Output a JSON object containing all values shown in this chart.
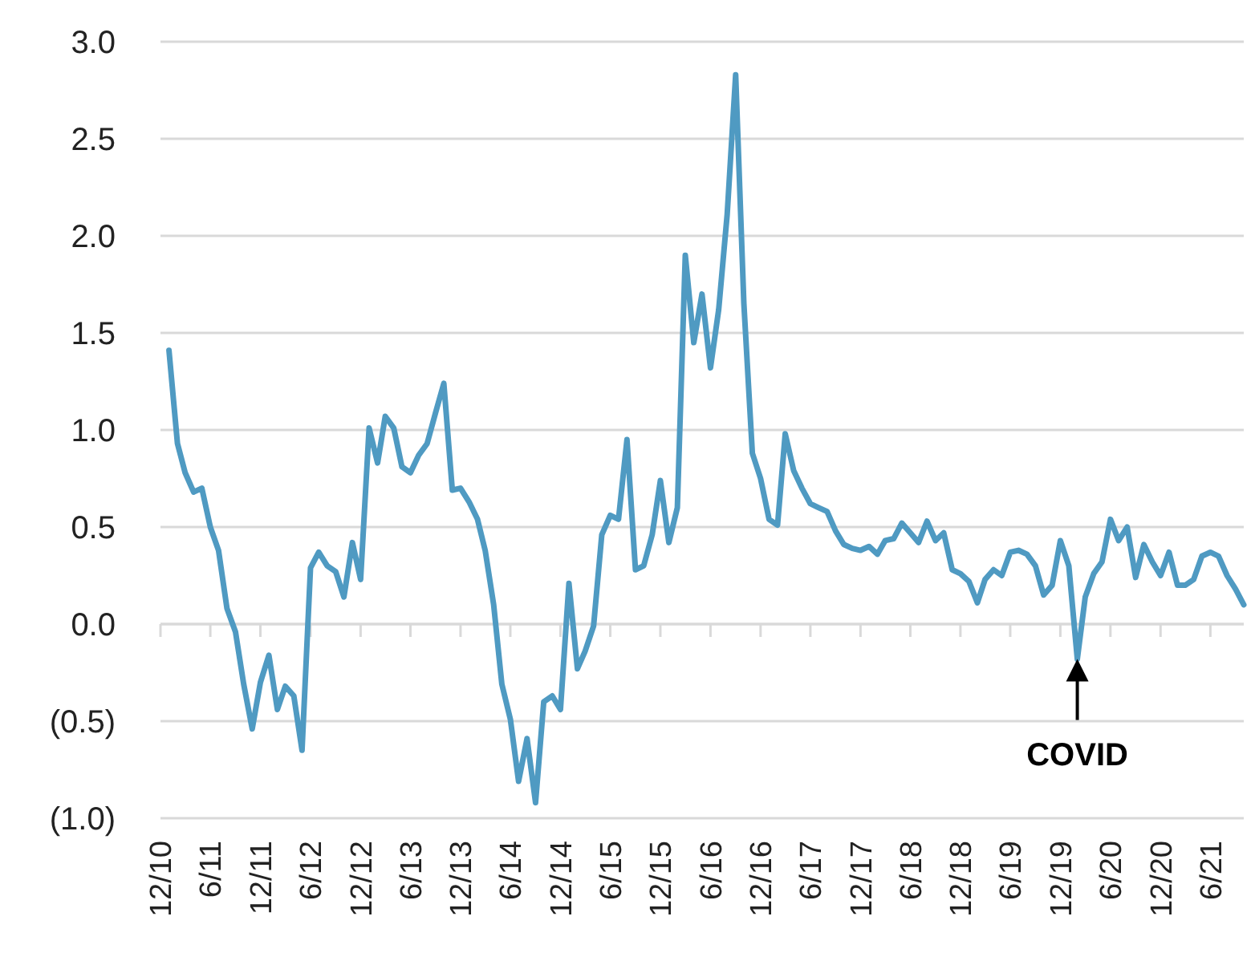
{
  "chart_data": {
    "type": "line",
    "xlim": [
      "2010-12",
      "2021-10"
    ],
    "ylim": [
      -1,
      3
    ],
    "xticks": [
      {
        "value": "2010-12",
        "label": "12/10"
      },
      {
        "value": "2011-06",
        "label": "6/11"
      },
      {
        "value": "2011-12",
        "label": "12/11"
      },
      {
        "value": "2012-06",
        "label": "6/12"
      },
      {
        "value": "2012-12",
        "label": "12/12"
      },
      {
        "value": "2013-06",
        "label": "6/13"
      },
      {
        "value": "2013-12",
        "label": "12/13"
      },
      {
        "value": "2014-06",
        "label": "6/14"
      },
      {
        "value": "2014-12",
        "label": "12/14"
      },
      {
        "value": "2015-06",
        "label": "6/15"
      },
      {
        "value": "2015-12",
        "label": "12/15"
      },
      {
        "value": "2016-06",
        "label": "6/16"
      },
      {
        "value": "2016-12",
        "label": "12/16"
      },
      {
        "value": "2017-06",
        "label": "6/17"
      },
      {
        "value": "2017-12",
        "label": "12/17"
      },
      {
        "value": "2018-06",
        "label": "6/18"
      },
      {
        "value": "2018-12",
        "label": "12/18"
      },
      {
        "value": "2019-06",
        "label": "6/19"
      },
      {
        "value": "2019-12",
        "label": "12/19"
      },
      {
        "value": "2020-06",
        "label": "6/20"
      },
      {
        "value": "2020-12",
        "label": "12/20"
      },
      {
        "value": "2021-06",
        "label": "6/21"
      }
    ],
    "yticks": [
      {
        "value": 3,
        "label": "3.0"
      },
      {
        "value": 2.5,
        "label": "2.5"
      },
      {
        "value": 2,
        "label": "2.0"
      },
      {
        "value": 1.5,
        "label": "1.5"
      },
      {
        "value": 1,
        "label": "1.0"
      },
      {
        "value": 0.5,
        "label": "0.5"
      },
      {
        "value": 0,
        "label": "0.0"
      },
      {
        "value": -0.5,
        "label": "(0.5)"
      },
      {
        "value": -1,
        "label": "(1.0)"
      }
    ],
    "grid": "y",
    "marker": "none",
    "line_style": "solid",
    "x": [
      "2011-01",
      "2011-02",
      "2011-03",
      "2011-04",
      "2011-05",
      "2011-06",
      "2011-07",
      "2011-08",
      "2011-09",
      "2011-10",
      "2011-11",
      "2011-12",
      "2012-01",
      "2012-02",
      "2012-03",
      "2012-04",
      "2012-05",
      "2012-06",
      "2012-07",
      "2012-08",
      "2012-09",
      "2012-10",
      "2012-11",
      "2012-12",
      "2013-01",
      "2013-02",
      "2013-03",
      "2013-04",
      "2013-05",
      "2013-06",
      "2013-07",
      "2013-08",
      "2013-09",
      "2013-10",
      "2013-11",
      "2013-12",
      "2014-01",
      "2014-02",
      "2014-03",
      "2014-04",
      "2014-05",
      "2014-06",
      "2014-07",
      "2014-08",
      "2014-09",
      "2014-10",
      "2014-11",
      "2014-12",
      "2015-01",
      "2015-02",
      "2015-03",
      "2015-04",
      "2015-05",
      "2015-06",
      "2015-07",
      "2015-08",
      "2015-09",
      "2015-10",
      "2015-11",
      "2015-12",
      "2016-01",
      "2016-02",
      "2016-03",
      "2016-04",
      "2016-05",
      "2016-06",
      "2016-07",
      "2016-08",
      "2016-09",
      "2016-10",
      "2016-11",
      "2016-12",
      "2017-01",
      "2017-02",
      "2017-03",
      "2017-04",
      "2017-05",
      "2017-06",
      "2017-07",
      "2017-08",
      "2017-09",
      "2017-10",
      "2017-11",
      "2017-12",
      "2018-01",
      "2018-02",
      "2018-03",
      "2018-04",
      "2018-05",
      "2018-06",
      "2018-07",
      "2018-08",
      "2018-09",
      "2018-10",
      "2018-11",
      "2018-12",
      "2019-01",
      "2019-02",
      "2019-03",
      "2019-04",
      "2019-05",
      "2019-06",
      "2019-07",
      "2019-08",
      "2019-09",
      "2019-10",
      "2019-11",
      "2019-12",
      "2020-01",
      "2020-02",
      "2020-03",
      "2020-04",
      "2020-05",
      "2020-06",
      "2020-07",
      "2020-08",
      "2020-09",
      "2020-10",
      "2020-11",
      "2020-12",
      "2021-01",
      "2021-02",
      "2021-03",
      "2021-04",
      "2021-05",
      "2021-06",
      "2021-07",
      "2021-08",
      "2021-09",
      "2021-10"
    ],
    "series": [
      {
        "color": "#4f9ac2",
        "values": [
          1.41,
          0.93,
          0.78,
          0.68,
          0.7,
          0.5,
          0.38,
          0.08,
          -0.04,
          -0.31,
          -0.54,
          -0.3,
          -0.16,
          -0.44,
          -0.32,
          -0.37,
          -0.65,
          0.29,
          0.37,
          0.3,
          0.27,
          0.14,
          0.42,
          0.23,
          1.01,
          0.83,
          1.07,
          1.01,
          0.81,
          0.78,
          0.87,
          0.93,
          1.09,
          1.24,
          0.69,
          0.7,
          0.63,
          0.54,
          0.38,
          0.1,
          -0.31,
          -0.49,
          -0.81,
          -0.59,
          -0.92,
          -0.4,
          -0.37,
          -0.44,
          0.21,
          -0.23,
          -0.14,
          -0.01,
          0.46,
          0.56,
          0.54,
          0.95,
          0.28,
          0.3,
          0.46,
          0.74,
          0.42,
          0.6,
          1.9,
          1.45,
          1.7,
          1.32,
          1.62,
          2.11,
          2.83,
          1.65,
          0.88,
          0.75,
          0.54,
          0.51,
          0.98,
          0.79,
          0.7,
          0.62,
          0.6,
          0.58,
          0.48,
          0.41,
          0.39,
          0.38,
          0.4,
          0.36,
          0.43,
          0.44,
          0.52,
          0.47,
          0.42,
          0.53,
          0.43,
          0.47,
          0.28,
          0.26,
          0.22,
          0.11,
          0.23,
          0.28,
          0.25,
          0.37,
          0.38,
          0.36,
          0.3,
          0.15,
          0.2,
          0.43,
          0.3,
          -0.18,
          0.14,
          0.26,
          0.32,
          0.54,
          0.43,
          0.5,
          0.24,
          0.41,
          0.32,
          0.25,
          0.37,
          0.2,
          0.2,
          0.23,
          0.35,
          0.37,
          0.35,
          0.25,
          0.18,
          0.1
        ]
      }
    ],
    "annotations": [
      {
        "text": "COVID",
        "x": "2020-02",
        "y": -0.18
      }
    ]
  }
}
